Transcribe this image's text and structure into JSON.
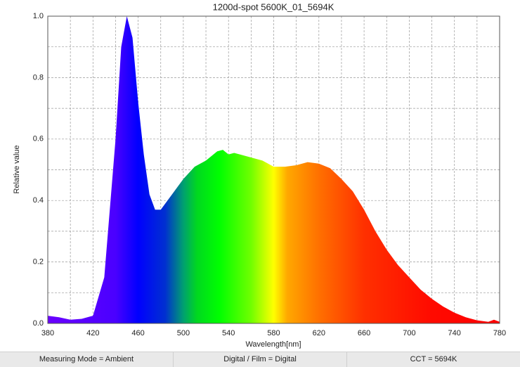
{
  "chart_data": {
    "type": "area",
    "title": "1200d-spot 5600K_01_5694K",
    "xlabel": "Wavelength[nm]",
    "ylabel": "Relative value",
    "x": [
      380,
      390,
      400,
      410,
      420,
      430,
      440,
      445,
      450,
      455,
      460,
      465,
      470,
      475,
      480,
      490,
      500,
      510,
      520,
      530,
      535,
      540,
      545,
      550,
      560,
      570,
      580,
      590,
      600,
      610,
      620,
      630,
      640,
      650,
      660,
      670,
      680,
      690,
      700,
      710,
      720,
      730,
      740,
      750,
      760,
      770,
      775,
      780
    ],
    "values": [
      0.025,
      0.02,
      0.012,
      0.015,
      0.025,
      0.15,
      0.6,
      0.9,
      1.0,
      0.93,
      0.72,
      0.55,
      0.42,
      0.37,
      0.37,
      0.42,
      0.47,
      0.51,
      0.53,
      0.56,
      0.565,
      0.55,
      0.555,
      0.55,
      0.54,
      0.53,
      0.51,
      0.51,
      0.515,
      0.525,
      0.52,
      0.505,
      0.47,
      0.43,
      0.37,
      0.3,
      0.24,
      0.19,
      0.15,
      0.11,
      0.08,
      0.055,
      0.035,
      0.02,
      0.01,
      0.005,
      0.012,
      0.005
    ],
    "xlim": [
      380,
      780
    ],
    "ylim": [
      0,
      1
    ],
    "xticks": [
      380,
      420,
      460,
      500,
      540,
      580,
      620,
      660,
      700,
      740,
      780
    ],
    "xminor": [
      400,
      440,
      480,
      520,
      560,
      600,
      640,
      680,
      720,
      760
    ],
    "yticks": [
      {
        "value": 0,
        "label": "0.0"
      },
      0.2,
      0.4,
      0.6,
      0.8,
      {
        "value": 1,
        "label": "1.0"
      }
    ],
    "yminor": [
      0.1,
      0.3,
      0.5,
      0.7,
      0.9
    ],
    "grid": true,
    "footer": [
      "Measuring Mode = Ambient",
      "Digital / Film = Digital",
      "CCT = 5694K"
    ]
  }
}
